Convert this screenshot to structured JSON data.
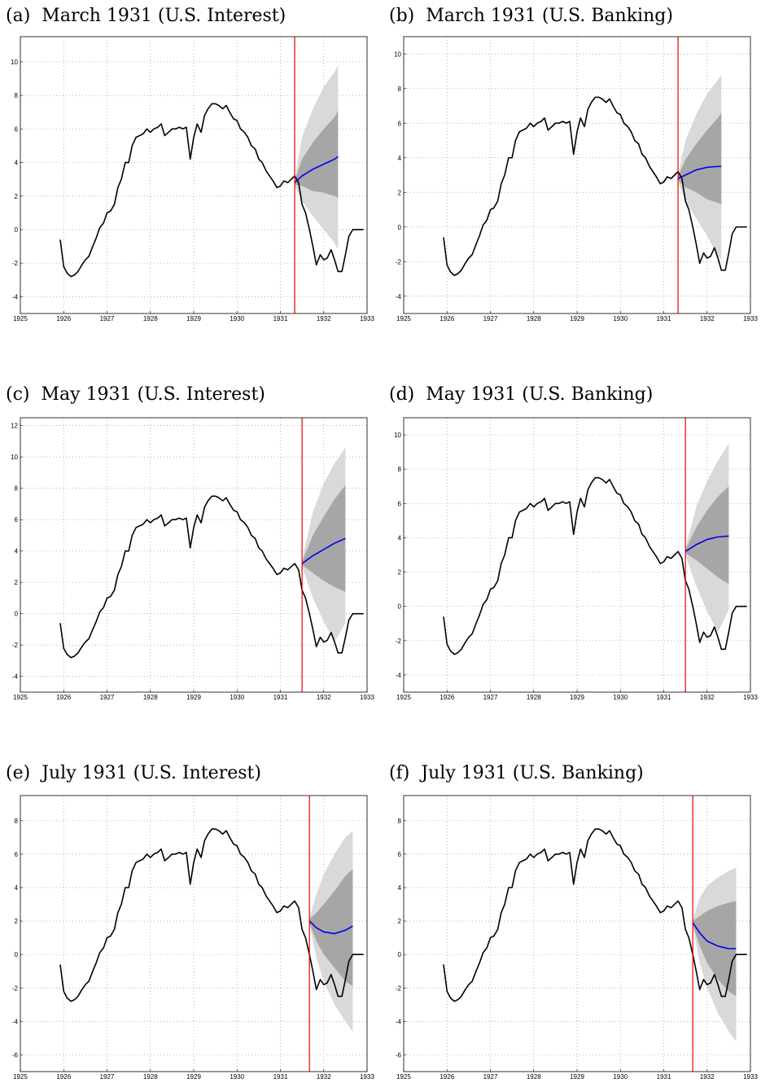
{
  "chart_data": [
    {
      "type": "line",
      "panel": "(a)",
      "title": "March 1931 (U.S. Interest)",
      "xlim": [
        1925,
        1933
      ],
      "ylim": [
        -5,
        11.5
      ],
      "xticks": [
        1925,
        1926,
        1927,
        1928,
        1929,
        1930,
        1931,
        1932,
        1933
      ],
      "yticks": [
        -4,
        -2,
        0,
        2,
        4,
        6,
        8,
        10
      ],
      "grid": true,
      "forecast_origin": 1931.33,
      "forecast": {
        "x": [
          1931.33,
          1931.5,
          1931.75,
          1932.0,
          1932.25,
          1932.33
        ],
        "median": [
          2.8,
          3.2,
          3.6,
          3.9,
          4.2,
          4.35
        ],
        "inner_band_low": [
          2.7,
          2.6,
          2.3,
          2.2,
          2.0,
          1.9
        ],
        "inner_band_high": [
          2.9,
          4.2,
          5.2,
          6.0,
          6.7,
          7.1
        ],
        "outer_band_low": [
          2.6,
          1.7,
          0.8,
          0.0,
          -0.8,
          -1.2
        ],
        "outer_band_high": [
          3.0,
          5.5,
          7.2,
          8.5,
          9.4,
          9.8
        ]
      }
    },
    {
      "type": "line",
      "panel": "(b)",
      "title": "March 1931 (U.S. Banking)",
      "xlim": [
        1925,
        1933
      ],
      "ylim": [
        -5,
        11
      ],
      "xticks": [
        1925,
        1926,
        1927,
        1928,
        1929,
        1930,
        1931,
        1932,
        1933
      ],
      "yticks": [
        -4,
        -2,
        0,
        2,
        4,
        6,
        8,
        10
      ],
      "grid": true,
      "forecast_origin": 1931.33,
      "forecast": {
        "x": [
          1931.33,
          1931.5,
          1931.75,
          1932.0,
          1932.25,
          1932.33
        ],
        "median": [
          2.8,
          3.0,
          3.3,
          3.45,
          3.5,
          3.5
        ],
        "inner_band_low": [
          2.7,
          2.3,
          2.0,
          1.6,
          1.4,
          1.3
        ],
        "inner_band_high": [
          2.9,
          3.9,
          4.8,
          5.6,
          6.3,
          6.6
        ],
        "outer_band_low": [
          2.6,
          1.5,
          0.5,
          -0.5,
          -1.7,
          -1.9
        ],
        "outer_band_high": [
          3.0,
          5.0,
          6.5,
          7.7,
          8.5,
          8.8
        ]
      }
    },
    {
      "type": "line",
      "panel": "(c)",
      "title": "May 1931 (U.S. Interest)",
      "xlim": [
        1925,
        1933
      ],
      "ylim": [
        -5,
        12.5
      ],
      "xticks": [
        1925,
        1926,
        1927,
        1928,
        1929,
        1930,
        1931,
        1932,
        1933
      ],
      "yticks": [
        -4,
        -2,
        0,
        2,
        4,
        6,
        8,
        10,
        12
      ],
      "grid": true,
      "forecast_origin": 1931.5,
      "forecast": {
        "x": [
          1931.5,
          1931.75,
          1932.0,
          1932.25,
          1932.5
        ],
        "median": [
          3.2,
          3.7,
          4.1,
          4.5,
          4.8
        ],
        "inner_band_low": [
          3.1,
          2.6,
          2.1,
          1.7,
          1.4
        ],
        "inner_band_high": [
          3.3,
          5.0,
          6.2,
          7.3,
          8.2
        ],
        "outer_band_low": [
          3.0,
          1.0,
          -0.5,
          -1.8,
          -0.6
        ],
        "outer_band_high": [
          3.4,
          6.5,
          8.3,
          9.6,
          10.6
        ]
      }
    },
    {
      "type": "line",
      "panel": "(d)",
      "title": "May 1931 (U.S. Banking)",
      "xlim": [
        1925,
        1933
      ],
      "ylim": [
        -5,
        11
      ],
      "xticks": [
        1925,
        1926,
        1927,
        1928,
        1929,
        1930,
        1931,
        1932,
        1933
      ],
      "yticks": [
        -4,
        -2,
        0,
        2,
        4,
        6,
        8,
        10
      ],
      "grid": true,
      "forecast_origin": 1931.5,
      "forecast": {
        "x": [
          1931.5,
          1931.75,
          1932.0,
          1932.25,
          1932.5
        ],
        "median": [
          3.2,
          3.6,
          3.9,
          4.05,
          4.1
        ],
        "inner_band_low": [
          3.1,
          2.7,
          2.2,
          1.7,
          1.3
        ],
        "inner_band_high": [
          3.3,
          4.6,
          5.6,
          6.4,
          7.0
        ],
        "outer_band_low": [
          3.0,
          1.2,
          -0.3,
          -1.5,
          -0.2
        ],
        "outer_band_high": [
          3.4,
          5.8,
          7.3,
          8.5,
          9.5
        ]
      }
    },
    {
      "type": "line",
      "panel": "(e)",
      "title": "July 1931 (U.S. Interest)",
      "xlim": [
        1925,
        1933
      ],
      "ylim": [
        -7,
        9.5
      ],
      "xticks": [
        1925,
        1926,
        1927,
        1928,
        1929,
        1930,
        1931,
        1932,
        1933
      ],
      "yticks": [
        -6,
        -4,
        -2,
        0,
        2,
        4,
        6,
        8
      ],
      "grid": true,
      "forecast_origin": 1931.67,
      "forecast": {
        "x": [
          1931.67,
          1931.83,
          1932.0,
          1932.25,
          1932.5,
          1932.67
        ],
        "median": [
          2.0,
          1.6,
          1.35,
          1.25,
          1.45,
          1.7
        ],
        "inner_band_low": [
          1.9,
          0.8,
          0.0,
          -0.8,
          -1.6,
          -1.9
        ],
        "inner_band_high": [
          2.1,
          2.5,
          3.0,
          3.8,
          4.7,
          5.1
        ],
        "outer_band_low": [
          1.8,
          -0.2,
          -1.6,
          -3.0,
          -4.0,
          -4.6
        ],
        "outer_band_high": [
          2.2,
          3.6,
          4.8,
          6.0,
          7.0,
          7.4
        ]
      }
    },
    {
      "type": "line",
      "panel": "(f)",
      "title": "July 1931 (U.S. Banking)",
      "xlim": [
        1925,
        1933
      ],
      "ylim": [
        -7,
        9.5
      ],
      "xticks": [
        1925,
        1926,
        1927,
        1928,
        1929,
        1930,
        1931,
        1932,
        1933
      ],
      "yticks": [
        -6,
        -4,
        -2,
        0,
        2,
        4,
        6,
        8
      ],
      "grid": true,
      "forecast_origin": 1931.67,
      "forecast": {
        "x": [
          1931.67,
          1931.83,
          1932.0,
          1932.25,
          1932.5,
          1932.67
        ],
        "median": [
          1.9,
          1.3,
          0.8,
          0.5,
          0.35,
          0.35
        ],
        "inner_band_low": [
          1.8,
          0.5,
          -0.5,
          -1.5,
          -2.2,
          -2.5
        ],
        "inner_band_high": [
          2.0,
          2.3,
          2.6,
          2.9,
          3.1,
          3.2
        ],
        "outer_band_low": [
          1.7,
          -0.5,
          -2.0,
          -3.5,
          -4.6,
          -5.2
        ],
        "outer_band_high": [
          2.1,
          3.4,
          4.1,
          4.6,
          5.0,
          5.2
        ]
      }
    }
  ],
  "actual_series": {
    "x": [
      1925.92,
      1926.0,
      1926.08,
      1926.17,
      1926.25,
      1926.33,
      1926.42,
      1926.5,
      1926.58,
      1926.67,
      1926.75,
      1926.83,
      1926.92,
      1927.0,
      1927.08,
      1927.17,
      1927.25,
      1927.33,
      1927.42,
      1927.5,
      1927.58,
      1927.67,
      1927.75,
      1927.83,
      1927.92,
      1928.0,
      1928.08,
      1928.17,
      1928.25,
      1928.33,
      1928.42,
      1928.5,
      1928.58,
      1928.67,
      1928.75,
      1928.83,
      1928.92,
      1929.0,
      1929.08,
      1929.17,
      1929.25,
      1929.33,
      1929.42,
      1929.5,
      1929.58,
      1929.67,
      1929.75,
      1929.83,
      1929.92,
      1930.0,
      1930.08,
      1930.17,
      1930.25,
      1930.33,
      1930.42,
      1930.5,
      1930.58,
      1930.67,
      1930.75,
      1930.83,
      1930.92,
      1931.0,
      1931.08,
      1931.17,
      1931.25,
      1931.33,
      1931.42,
      1931.5,
      1931.58,
      1931.67,
      1931.75,
      1931.83,
      1931.92,
      1932.0,
      1932.08,
      1932.17,
      1932.25,
      1932.33,
      1932.42,
      1932.5,
      1932.58,
      1932.67,
      1932.75,
      1932.83,
      1932.92
    ],
    "y": [
      -0.6,
      -2.2,
      -2.6,
      -2.8,
      -2.7,
      -2.5,
      -2.1,
      -1.8,
      -1.6,
      -1.0,
      -0.5,
      0.1,
      0.4,
      1.0,
      1.1,
      1.5,
      2.5,
      3.0,
      4.0,
      4.0,
      5.0,
      5.5,
      5.6,
      5.7,
      6.0,
      5.8,
      6.0,
      6.1,
      6.3,
      5.6,
      5.8,
      6.0,
      6.0,
      6.1,
      6.0,
      6.1,
      4.2,
      5.5,
      6.3,
      5.8,
      6.8,
      7.2,
      7.5,
      7.5,
      7.4,
      7.2,
      7.4,
      7.0,
      6.6,
      6.5,
      6.0,
      5.8,
      5.5,
      5.0,
      4.8,
      4.2,
      4.0,
      3.5,
      3.2,
      2.9,
      2.5,
      2.6,
      2.9,
      2.8,
      3.0,
      3.2,
      2.8,
      1.5,
      1.0,
      0.0,
      -1.0,
      -2.1,
      -1.5,
      -1.8,
      -1.7,
      -1.2,
      -1.8,
      -2.5,
      -2.5,
      -1.5,
      -0.4,
      0.0,
      0.0,
      0.0,
      0.0
    ]
  }
}
